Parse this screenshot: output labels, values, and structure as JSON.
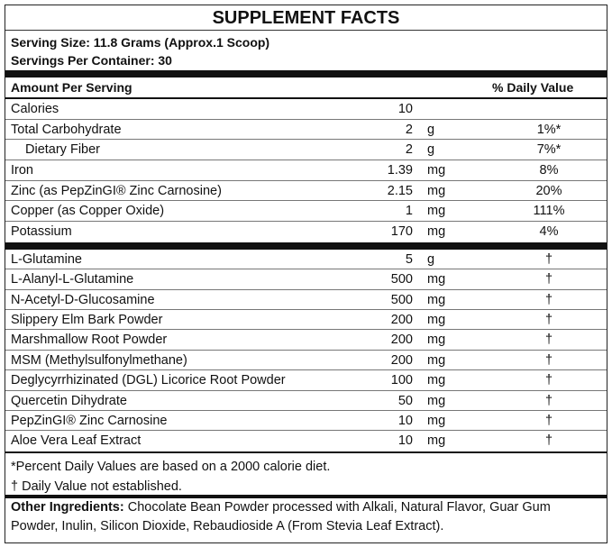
{
  "header": {
    "title": "SUPPLEMENT FACTS",
    "serving_size": "Serving Size: 11.8 Grams (Approx.1 Scoop)",
    "servings_per_container": "Servings Per Container: 30"
  },
  "table": {
    "columns": [
      "Amount Per Serving",
      "% Daily Value"
    ],
    "section1": [
      {
        "name": "Calories",
        "amount": 10
      },
      {
        "name": "Total Carbohydrate",
        "amount": 2,
        "unit": "g",
        "dv": "1%*"
      },
      {
        "name": "Dietary Fiber",
        "amount": 2,
        "unit": "g",
        "dv": "7%*"
      },
      {
        "name": "Iron",
        "amount": 1.39,
        "unit": "mg",
        "dv": "8%"
      },
      {
        "name": "Zinc (as PepZinGI® Zinc Carnosine)",
        "amount": 2.15,
        "unit": "mg",
        "dv": "20%"
      },
      {
        "name": "Copper (as Copper Oxide)",
        "amount": 1,
        "unit": "mg",
        "dv": "111%"
      },
      {
        "name": "Potassium",
        "amount": 170,
        "unit": "mg",
        "dv": "4%"
      }
    ],
    "section2": [
      {
        "name": "L-Glutamine",
        "amount": 5,
        "unit": "g",
        "dv": "†"
      },
      {
        "name": "L-Alanyl-L-Glutamine",
        "amount": 500,
        "unit": "mg",
        "dv": "†"
      },
      {
        "name": "N-Acetyl-D-Glucosamine",
        "amount": 500,
        "unit": "mg",
        "dv": "†"
      },
      {
        "name": "Slippery Elm Bark Powder",
        "amount": 200,
        "unit": "mg",
        "dv": "†"
      },
      {
        "name": "Marshmallow Root Powder",
        "amount": 200,
        "unit": "mg",
        "dv": "†"
      },
      {
        "name": "MSM (Methylsulfonylmethane)",
        "amount": 200,
        "unit": "mg",
        "dv": "†"
      },
      {
        "name": "Deglycyrrhizinated (DGL) Licorice Root Powder",
        "amount": 100,
        "unit": "mg",
        "dv": "†"
      },
      {
        "name": "Quercetin Dihydrate",
        "amount": 50,
        "unit": "mg",
        "dv": "†"
      },
      {
        "name": "PepZinGI® Zinc Carnosine",
        "amount": 10,
        "unit": "mg",
        "dv": "†"
      },
      {
        "name": "Aloe Vera Leaf Extract",
        "amount": 10,
        "unit": "mg",
        "dv": "†"
      }
    ]
  },
  "footnotes": [
    "*Percent Daily Values are based on a 2000 calorie diet.",
    "† Daily Value not established."
  ],
  "other_ingredients": {
    "label": "Other Ingredients:",
    "text": "Chocolate Bean Powder processed with Alkali, Natural Flavor, Guar Gum Powder, Inulin, Silicon Dioxide, Rebaudioside A (From Stevia Leaf Extract)."
  }
}
